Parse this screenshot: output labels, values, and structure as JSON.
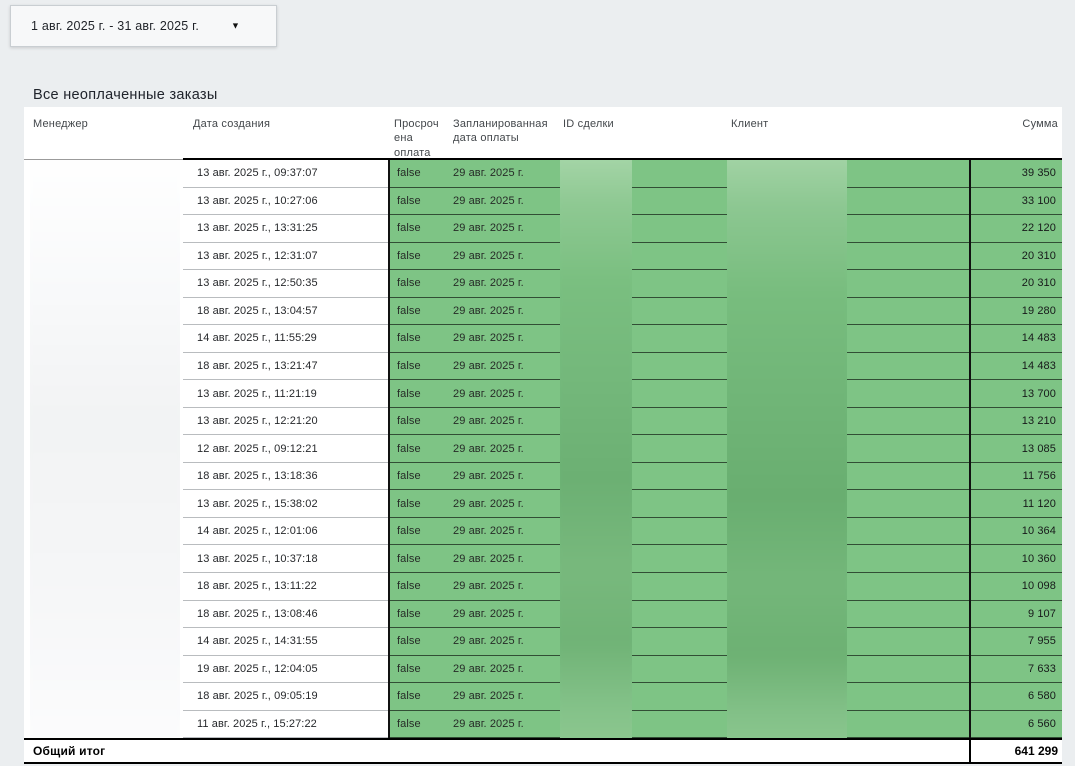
{
  "date_filter": {
    "value": "1 авг. 2025 г. - 31 авг. 2025 г.",
    "caret_icon": "▼"
  },
  "title": "Все неоплаченные заказы",
  "table": {
    "headers": {
      "manager": "Менеджер",
      "created": "Дата создания",
      "overdue": "Просрочена оплата",
      "planned": "Запланированная дата оплаты",
      "deal_id": "ID сделки",
      "client": "Клиент",
      "amount": "Сумма"
    },
    "rows": [
      {
        "created": "13 авг. 2025 г., 09:37:07",
        "overdue": "false",
        "planned": "29 авг. 2025 г.",
        "amount": "39 350"
      },
      {
        "created": "13 авг. 2025 г., 10:27:06",
        "overdue": "false",
        "planned": "29 авг. 2025 г.",
        "amount": "33 100"
      },
      {
        "created": "13 авг. 2025 г., 13:31:25",
        "overdue": "false",
        "planned": "29 авг. 2025 г.",
        "amount": "22 120"
      },
      {
        "created": "13 авг. 2025 г., 12:31:07",
        "overdue": "false",
        "planned": "29 авг. 2025 г.",
        "amount": "20 310"
      },
      {
        "created": "13 авг. 2025 г., 12:50:35",
        "overdue": "false",
        "planned": "29 авг. 2025 г.",
        "amount": "20 310"
      },
      {
        "created": "18 авг. 2025 г., 13:04:57",
        "overdue": "false",
        "planned": "29 авг. 2025 г.",
        "amount": "19 280"
      },
      {
        "created": "14 авг. 2025 г., 11:55:29",
        "overdue": "false",
        "planned": "29 авг. 2025 г.",
        "amount": "14 483"
      },
      {
        "created": "18 авг. 2025 г., 13:21:47",
        "overdue": "false",
        "planned": "29 авг. 2025 г.",
        "amount": "14 483"
      },
      {
        "created": "13 авг. 2025 г., 11:21:19",
        "overdue": "false",
        "planned": "29 авг. 2025 г.",
        "amount": "13 700"
      },
      {
        "created": "13 авг. 2025 г., 12:21:20",
        "overdue": "false",
        "planned": "29 авг. 2025 г.",
        "amount": "13 210"
      },
      {
        "created": "12 авг. 2025 г., 09:12:21",
        "overdue": "false",
        "planned": "29 авг. 2025 г.",
        "amount": "13 085"
      },
      {
        "created": "18 авг. 2025 г., 13:18:36",
        "overdue": "false",
        "planned": "29 авг. 2025 г.",
        "amount": "11 756"
      },
      {
        "created": "13 авг. 2025 г., 15:38:02",
        "overdue": "false",
        "planned": "29 авг. 2025 г.",
        "amount": "11 120"
      },
      {
        "created": "14 авг. 2025 г., 12:01:06",
        "overdue": "false",
        "planned": "29 авг. 2025 г.",
        "amount": "10 364"
      },
      {
        "created": "13 авг. 2025 г., 10:37:18",
        "overdue": "false",
        "planned": "29 авг. 2025 г.",
        "amount": "10 360"
      },
      {
        "created": "18 авг. 2025 г., 13:11:22",
        "overdue": "false",
        "planned": "29 авг. 2025 г.",
        "amount": "10 098"
      },
      {
        "created": "18 авг. 2025 г., 13:08:46",
        "overdue": "false",
        "planned": "29 авг. 2025 г.",
        "amount": "9 107"
      },
      {
        "created": "14 авг. 2025 г., 14:31:55",
        "overdue": "false",
        "planned": "29 авг. 2025 г.",
        "amount": "7 955"
      },
      {
        "created": "19 авг. 2025 г., 12:04:05",
        "overdue": "false",
        "planned": "29 авг. 2025 г.",
        "amount": "7 633"
      },
      {
        "created": "18 авг. 2025 г., 09:05:19",
        "overdue": "false",
        "planned": "29 авг. 2025 г.",
        "amount": "6 580"
      },
      {
        "created": "11 авг. 2025 г., 15:27:22",
        "overdue": "false",
        "planned": "29 авг. 2025 г.",
        "amount": "6 560"
      }
    ],
    "total": {
      "label": "Общий итог",
      "amount": "641 299"
    },
    "redacted_columns": [
      "Менеджер",
      "ID сделки",
      "Клиент"
    ]
  },
  "colors": {
    "page-bg": "#ebeef0",
    "green": "#7ec485",
    "black": "#111111"
  }
}
